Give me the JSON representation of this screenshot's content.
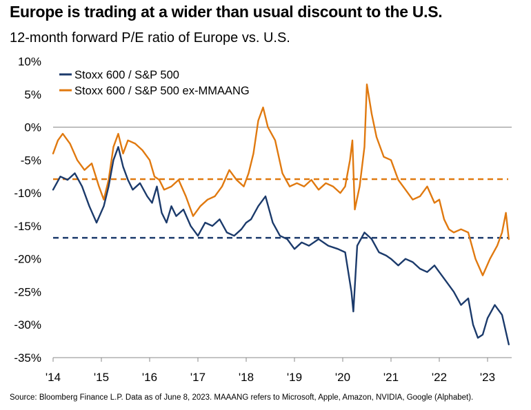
{
  "header": {
    "title": "Europe is trading at a wider than usual discount to the U.S.",
    "subtitle": "12-month forward P/E ratio of Europe vs. U.S."
  },
  "footer": {
    "source": "Source: Bloomberg Finance L.P. Data as of June 8, 2023. MAAANG refers to Microsoft, Apple, Amazon, NVIDIA, Google (Alphabet)."
  },
  "colors": {
    "navy": "#1b3a6b",
    "orange": "#e0790f",
    "axis": "#888888"
  },
  "chart_data": {
    "type": "line",
    "title": "Europe is trading at a wider than usual discount to the U.S.",
    "subtitle": "12-month forward P/E ratio of Europe vs. U.S.",
    "x_ticks": [
      "'14",
      "'15",
      "'16",
      "'17",
      "'18",
      "'19",
      "'20",
      "'21",
      "'22",
      "'23"
    ],
    "y_ticks": [
      "10%",
      "5%",
      "0%",
      "-5%",
      "-10%",
      "-15%",
      "-20%",
      "-25%",
      "-30%",
      "-35%"
    ],
    "ylim": [
      -35,
      10
    ],
    "xlim": [
      2014.0,
      2023.5
    ],
    "grid": false,
    "legend_position": "top-left",
    "series": [
      {
        "name": "Stoxx 600 / S&P 500",
        "color": "#1b3a6b",
        "average": -16.8,
        "x": [
          2014.0,
          2014.15,
          2014.3,
          2014.45,
          2014.6,
          2014.75,
          2014.9,
          2015.05,
          2015.15,
          2015.25,
          2015.35,
          2015.45,
          2015.55,
          2015.65,
          2015.8,
          2015.95,
          2016.05,
          2016.15,
          2016.25,
          2016.35,
          2016.45,
          2016.55,
          2016.7,
          2016.85,
          2017.0,
          2017.15,
          2017.3,
          2017.45,
          2017.6,
          2017.75,
          2017.9,
          2018.0,
          2018.1,
          2018.25,
          2018.4,
          2018.55,
          2018.7,
          2018.85,
          2019.0,
          2019.15,
          2019.3,
          2019.5,
          2019.7,
          2019.9,
          2020.05,
          2020.18,
          2020.22,
          2020.3,
          2020.45,
          2020.6,
          2020.75,
          2020.9,
          2021.0,
          2021.15,
          2021.3,
          2021.45,
          2021.6,
          2021.75,
          2021.9,
          2022.0,
          2022.15,
          2022.3,
          2022.45,
          2022.6,
          2022.7,
          2022.8,
          2022.9,
          2023.0,
          2023.15,
          2023.3,
          2023.44
        ],
        "values": [
          -9.5,
          -7.5,
          -8.0,
          -7.0,
          -9.0,
          -12.0,
          -14.5,
          -12.0,
          -9.0,
          -5.0,
          -3.0,
          -6.0,
          -8.0,
          -9.5,
          -8.5,
          -10.5,
          -11.5,
          -9.0,
          -13.0,
          -14.5,
          -12.0,
          -13.5,
          -12.5,
          -15.0,
          -16.5,
          -14.5,
          -15.0,
          -14.0,
          -16.0,
          -16.5,
          -15.5,
          -14.5,
          -14.0,
          -12.0,
          -10.5,
          -14.5,
          -16.5,
          -17.0,
          -18.5,
          -17.5,
          -18.0,
          -17.0,
          -18.0,
          -18.5,
          -19.0,
          -25.0,
          -28.0,
          -18.0,
          -16.0,
          -17.0,
          -19.0,
          -19.5,
          -20.0,
          -21.0,
          -20.0,
          -20.5,
          -21.5,
          -22.0,
          -21.0,
          -22.0,
          -23.5,
          -25.0,
          -27.0,
          -26.0,
          -30.0,
          -32.0,
          -31.5,
          -29.0,
          -27.0,
          -28.5,
          -33.0
        ]
      },
      {
        "name": "Stoxx 600 / S&P 500 ex-MMAANG",
        "color": "#e0790f",
        "average": -7.9,
        "x": [
          2014.0,
          2014.1,
          2014.2,
          2014.35,
          2014.5,
          2014.65,
          2014.8,
          2014.95,
          2015.05,
          2015.15,
          2015.25,
          2015.35,
          2015.45,
          2015.55,
          2015.7,
          2015.85,
          2016.0,
          2016.1,
          2016.2,
          2016.3,
          2016.45,
          2016.6,
          2016.75,
          2016.9,
          2017.05,
          2017.2,
          2017.35,
          2017.5,
          2017.65,
          2017.8,
          2017.95,
          2018.05,
          2018.15,
          2018.25,
          2018.35,
          2018.45,
          2018.6,
          2018.75,
          2018.9,
          2019.05,
          2019.2,
          2019.35,
          2019.5,
          2019.65,
          2019.8,
          2019.95,
          2020.05,
          2020.15,
          2020.2,
          2020.25,
          2020.35,
          2020.45,
          2020.5,
          2020.6,
          2020.7,
          2020.85,
          2021.0,
          2021.15,
          2021.3,
          2021.45,
          2021.6,
          2021.75,
          2021.9,
          2022.0,
          2022.1,
          2022.2,
          2022.3,
          2022.45,
          2022.6,
          2022.75,
          2022.9,
          2023.05,
          2023.2,
          2023.3,
          2023.38,
          2023.44
        ],
        "values": [
          -4.0,
          -2.0,
          -1.0,
          -2.5,
          -5.0,
          -6.5,
          -5.5,
          -9.0,
          -11.0,
          -8.0,
          -3.0,
          -1.0,
          -4.0,
          -2.0,
          -2.5,
          -3.5,
          -5.0,
          -7.5,
          -8.0,
          -9.5,
          -9.0,
          -8.0,
          -10.5,
          -13.5,
          -12.0,
          -11.0,
          -10.5,
          -9.0,
          -6.5,
          -8.0,
          -9.0,
          -7.0,
          -4.0,
          1.0,
          3.0,
          0.0,
          -2.0,
          -7.0,
          -9.0,
          -8.5,
          -9.0,
          -8.0,
          -9.5,
          -8.5,
          -9.0,
          -10.0,
          -9.0,
          -5.0,
          -2.0,
          -12.5,
          -9.0,
          -3.0,
          6.5,
          2.0,
          -1.5,
          -4.5,
          -5.0,
          -8.0,
          -9.5,
          -11.0,
          -10.5,
          -9.0,
          -11.5,
          -11.0,
          -14.0,
          -15.5,
          -16.0,
          -15.5,
          -16.0,
          -20.0,
          -22.5,
          -20.0,
          -18.0,
          -16.0,
          -13.0,
          -17.0
        ]
      }
    ]
  }
}
